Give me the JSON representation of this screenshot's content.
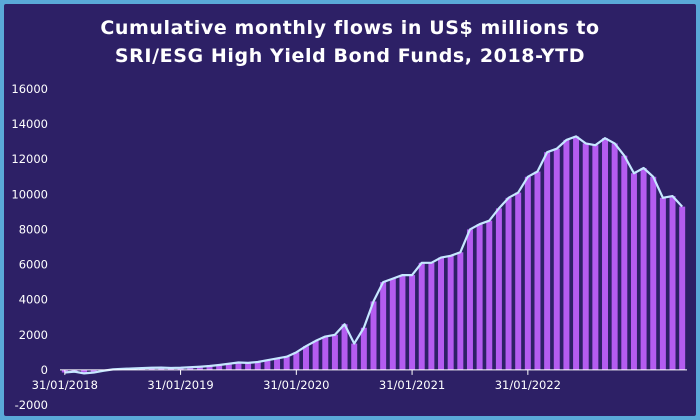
{
  "chart_data": {
    "type": "bar",
    "title_line1": "Cumulative monthly flows in US$ millions to",
    "title_line2": "SRI/ESG High Yield Bond Funds, 2018-YTD",
    "xlabel": "",
    "ylabel": "",
    "ylim": [
      -2000,
      16000
    ],
    "yticks": [
      -2000,
      0,
      2000,
      4000,
      6000,
      8000,
      10000,
      12000,
      14000,
      16000
    ],
    "xtick_labels": [
      "31/01/2018",
      "31/01/2019",
      "31/01/2020",
      "31/01/2021",
      "31/01/2022"
    ],
    "xtick_indices": [
      0,
      12,
      24,
      36,
      48
    ],
    "grid": false,
    "legend": "none",
    "colors": {
      "bar": "#b45cf0",
      "line": "#c6e8ff",
      "background": "#2d2066",
      "border": "#5aa9d8"
    },
    "values": [
      -150,
      -100,
      -200,
      -150,
      -50,
      30,
      60,
      80,
      100,
      120,
      130,
      110,
      120,
      150,
      180,
      220,
      280,
      350,
      420,
      400,
      450,
      550,
      650,
      750,
      1000,
      1350,
      1650,
      1900,
      2000,
      2600,
      1500,
      2400,
      3900,
      5000,
      5200,
      5400,
      5400,
      6100,
      6100,
      6400,
      6500,
      6700,
      8000,
      8300,
      8500,
      9200,
      9800,
      10100,
      11000,
      11300,
      12400,
      12600,
      13100,
      13300,
      12900,
      12800,
      13200,
      12900,
      12200,
      11200,
      11500,
      11000,
      9800,
      9900,
      9300
    ]
  }
}
